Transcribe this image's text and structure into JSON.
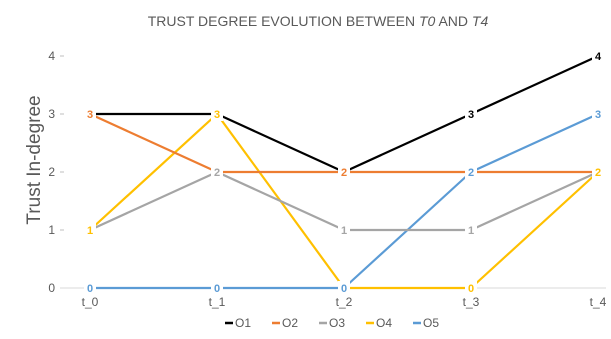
{
  "chart_data": {
    "type": "line",
    "title_parts": [
      {
        "text": "TRUST DEGREE EVOLUTION BETWEEN ",
        "italic": false
      },
      {
        "text": "T0",
        "italic": true
      },
      {
        "text": " AND ",
        "italic": false
      },
      {
        "text": "T4",
        "italic": true
      }
    ],
    "ylabel": "Trust In-degree",
    "xlabel": "",
    "categories": [
      "t_0",
      "t_1",
      "t_2",
      "t_3",
      "t_4"
    ],
    "y_ticks": [
      "0",
      "1",
      "2",
      "3",
      "4"
    ],
    "ylim": [
      0,
      4
    ],
    "grid": "none",
    "legend_position": "bottom",
    "series": [
      {
        "name": "O1",
        "color": "#000000",
        "values": [
          3,
          3,
          2,
          3,
          4
        ],
        "labels": [
          null,
          null,
          "2",
          "3",
          "4"
        ]
      },
      {
        "name": "O2",
        "color": "#ed7d31",
        "values": [
          3,
          2,
          2,
          2,
          2
        ],
        "labels": [
          "3",
          null,
          "2",
          null,
          "2"
        ]
      },
      {
        "name": "O3",
        "color": "#a5a5a5",
        "values": [
          1,
          2,
          1,
          1,
          2
        ],
        "labels": [
          null,
          "2",
          "1",
          "1",
          null
        ]
      },
      {
        "name": "O4",
        "color": "#ffc000",
        "values": [
          1,
          3,
          0,
          0,
          2
        ],
        "labels": [
          "1",
          "3",
          null,
          "0",
          "2"
        ]
      },
      {
        "name": "O5",
        "color": "#5b9bd5",
        "values": [
          0,
          0,
          0,
          2,
          3
        ],
        "labels": [
          "0",
          "0",
          "0",
          "2",
          "3"
        ]
      }
    ]
  }
}
